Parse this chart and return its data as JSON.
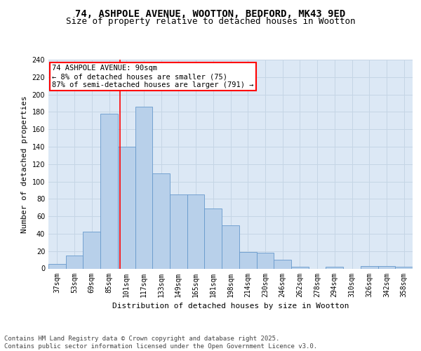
{
  "title_line1": "74, ASHPOLE AVENUE, WOOTTON, BEDFORD, MK43 9ED",
  "title_line2": "Size of property relative to detached houses in Wootton",
  "xlabel": "Distribution of detached houses by size in Wootton",
  "ylabel": "Number of detached properties",
  "categories": [
    "37sqm",
    "53sqm",
    "69sqm",
    "85sqm",
    "101sqm",
    "117sqm",
    "133sqm",
    "149sqm",
    "165sqm",
    "181sqm",
    "198sqm",
    "214sqm",
    "230sqm",
    "246sqm",
    "262sqm",
    "278sqm",
    "294sqm",
    "310sqm",
    "326sqm",
    "342sqm",
    "358sqm"
  ],
  "values": [
    5,
    15,
    42,
    178,
    140,
    186,
    109,
    85,
    85,
    69,
    50,
    19,
    18,
    10,
    2,
    0,
    2,
    0,
    3,
    3,
    2
  ],
  "bar_color": "#b8d0ea",
  "bar_edge_color": "#6699cc",
  "grid_color": "#c5d5e5",
  "background_color": "#dce8f5",
  "annotation_text": "74 ASHPOLE AVENUE: 90sqm\n← 8% of detached houses are smaller (75)\n87% of semi-detached houses are larger (791) →",
  "annotation_box_color": "white",
  "annotation_box_edge": "red",
  "vline_x": 3.62,
  "vline_color": "red",
  "ylim": [
    0,
    240
  ],
  "yticks": [
    0,
    20,
    40,
    60,
    80,
    100,
    120,
    140,
    160,
    180,
    200,
    220,
    240
  ],
  "footer_text": "Contains HM Land Registry data © Crown copyright and database right 2025.\nContains public sector information licensed under the Open Government Licence v3.0.",
  "title_fontsize": 10,
  "subtitle_fontsize": 9,
  "axis_label_fontsize": 8,
  "tick_fontsize": 7,
  "annotation_fontsize": 7.5,
  "footer_fontsize": 6.5
}
